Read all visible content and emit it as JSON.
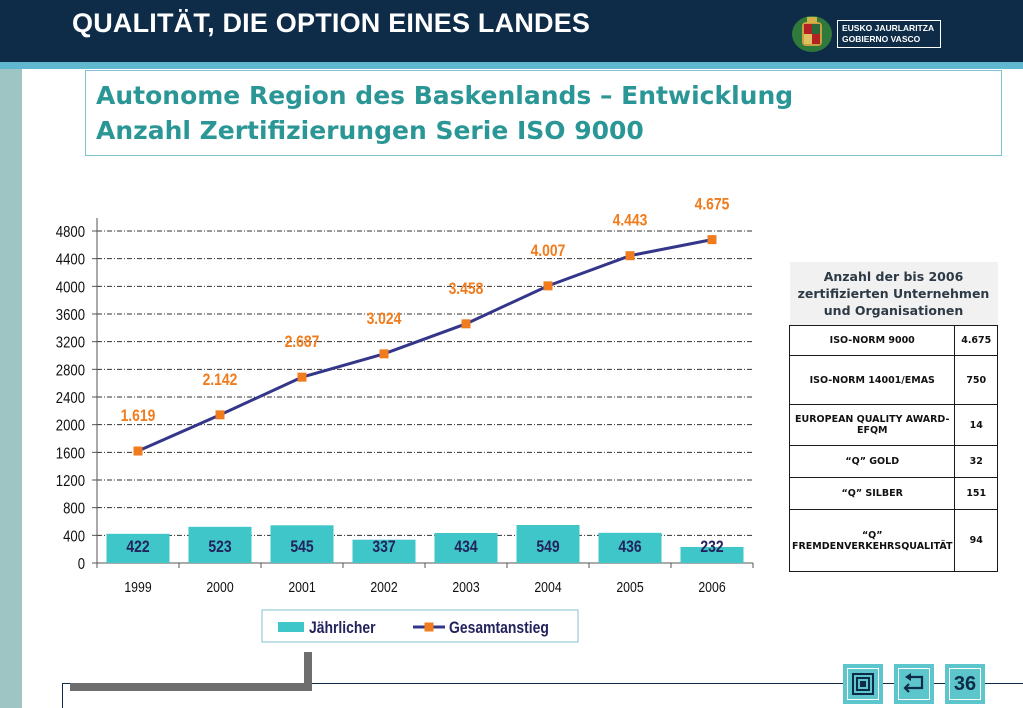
{
  "header": {
    "heading": "QUALITÄT, DIE OPTION EINES LANDES",
    "logo_line1": "EUSKO JAURLARITZA",
    "logo_line2": "GOBIERNO VASCO"
  },
  "title": {
    "line1": "Autonome Region des Baskenlands – Entwicklung",
    "line2": "Anzahl Zertifizierungen Serie ISO 9000"
  },
  "chart_data": {
    "type": "bar",
    "categories": [
      "1999",
      "2000",
      "2001",
      "2002",
      "2003",
      "2004",
      "2005",
      "2006"
    ],
    "series": [
      {
        "name": "Jährlicher",
        "type": "bar",
        "values": [
          422,
          523,
          545,
          337,
          434,
          549,
          436,
          232
        ],
        "labels": [
          "422",
          "523",
          "545",
          "337",
          "434",
          "549",
          "436",
          "232"
        ],
        "color": "#3ec6c8"
      },
      {
        "name": "Gesamtanstieg",
        "type": "line",
        "values": [
          1619,
          2142,
          2687,
          3024,
          3458,
          4007,
          4443,
          4675
        ],
        "labels": [
          "1.619",
          "2.142",
          "2.687",
          "3.024",
          "3.458",
          "4.007",
          "4.443",
          "4.675"
        ],
        "color": "#34368a",
        "marker_color": "#f07c1e"
      }
    ],
    "yticks": [
      "0",
      "400",
      "800",
      "1200",
      "1600",
      "2000",
      "2400",
      "2800",
      "3200",
      "3600",
      "4000",
      "4400",
      "4800"
    ],
    "ylim": [
      0,
      5000
    ],
    "grid": true,
    "legend_position": "bottom",
    "title": "",
    "xlabel": "",
    "ylabel": ""
  },
  "info_table": {
    "header": "Anzahl der bis 2006 zertifizierten Unternehmen und Organisationen",
    "rows": [
      {
        "label": "ISO-NORM 9000",
        "value": "4.675"
      },
      {
        "label": "ISO-NORM 14001/EMAS",
        "value": "750"
      },
      {
        "label": "EUROPEAN QUALITY AWARD-EFQM",
        "value": "14"
      },
      {
        "label": "“Q” GOLD",
        "value": "32"
      },
      {
        "label": "“Q” SILBER",
        "value": "151"
      },
      {
        "label": "“Q” FREMDENVERKEHRSQUALITÄT",
        "value": "94"
      }
    ]
  },
  "footer": {
    "page_number": "36",
    "buttons": [
      "fullscreen-icon",
      "return-icon"
    ]
  },
  "colors": {
    "navy": "#0e2c48",
    "teal_title": "#2b9696",
    "bar": "#3ec6c8",
    "line": "#34368a",
    "marker": "#f07c1e",
    "label_orange": "#f07c1e"
  }
}
